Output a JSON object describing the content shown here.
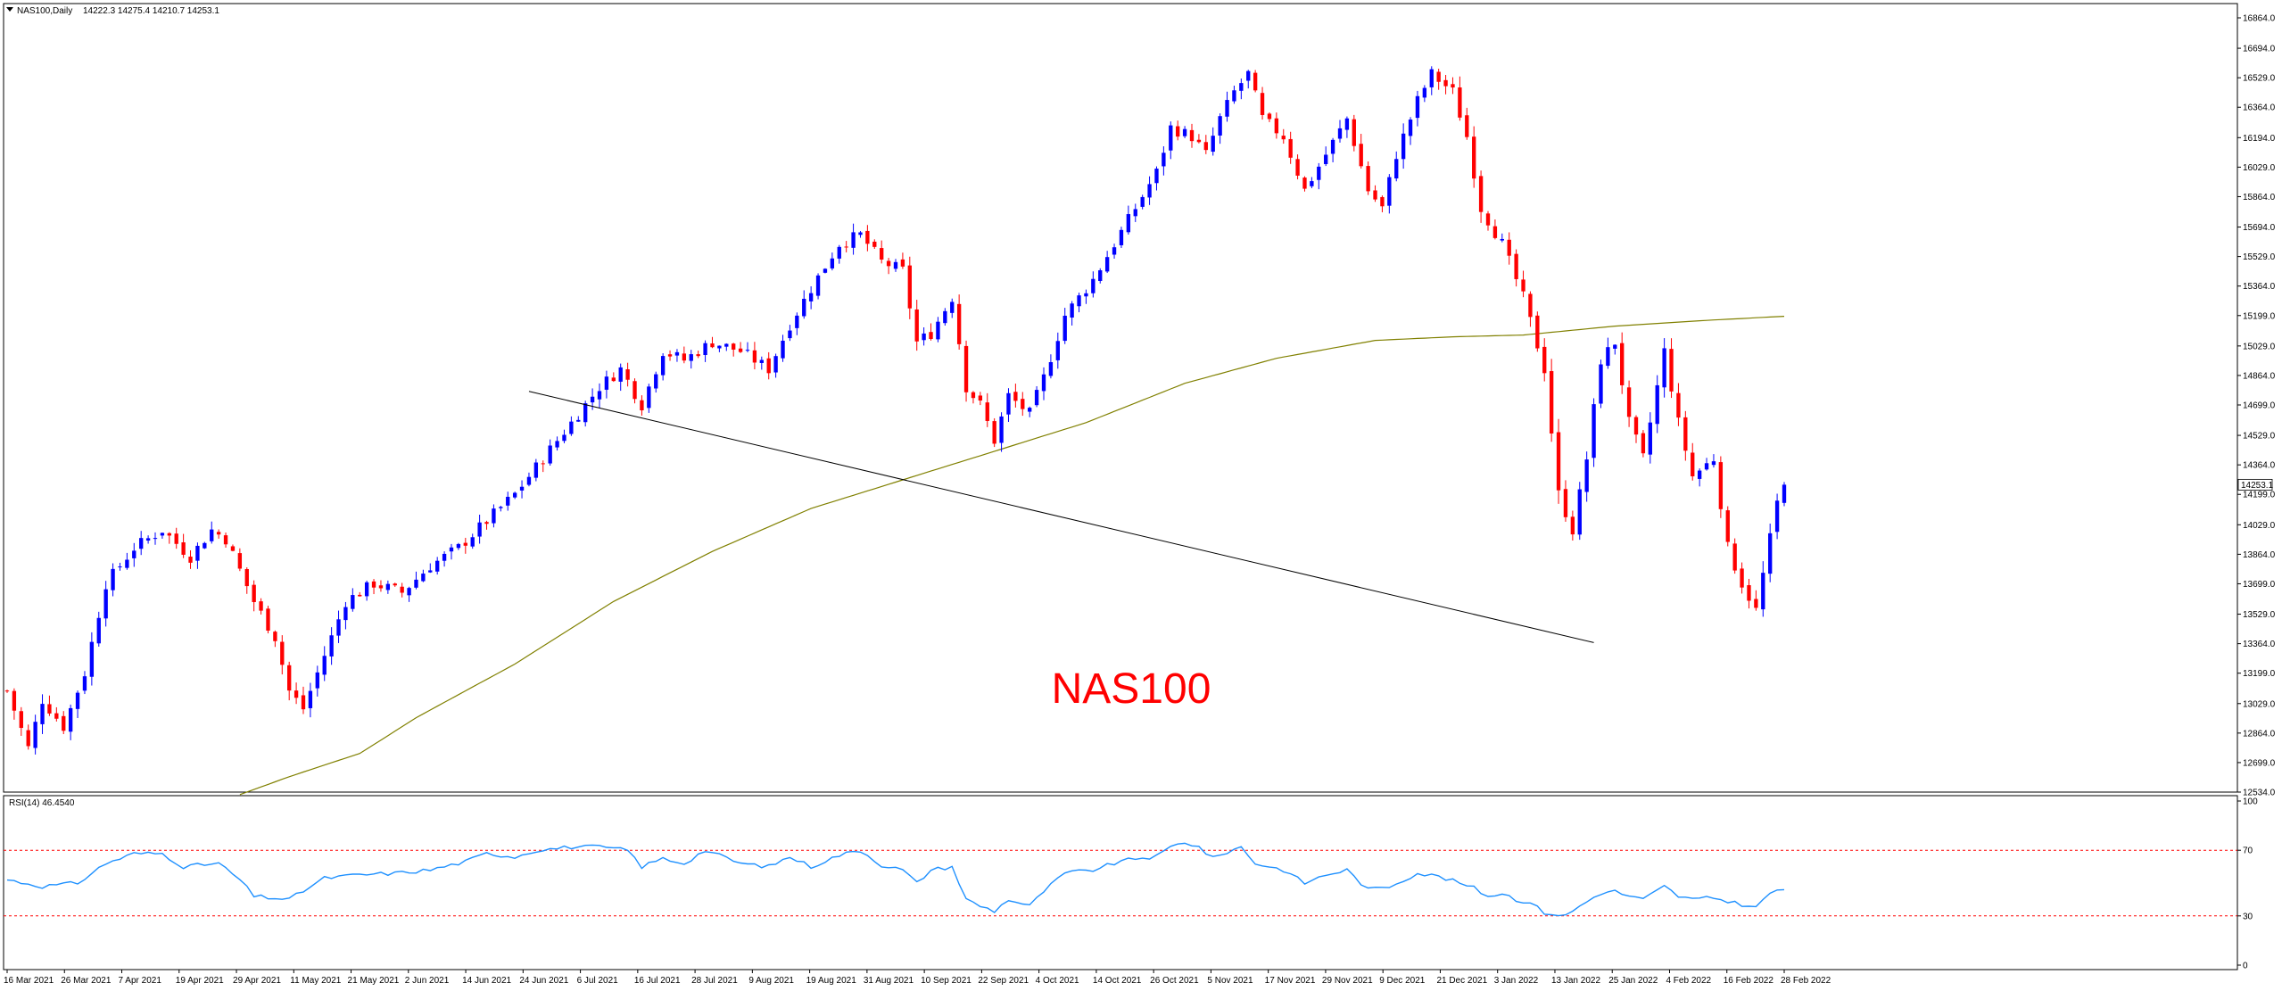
{
  "header": {
    "symbol_label": "NAS100,Daily",
    "ohlc_label": "14222.3 14275.4 14210.7 14253.1"
  },
  "rsi_header": {
    "label": "RSI(14) 46.4540"
  },
  "watermark_text": "NAS100",
  "current_price_label": "14253.1",
  "colors": {
    "bull": "#0000ff",
    "bear": "#ff0000",
    "ma": "#808000",
    "rsi": "#1e90ff",
    "rsi_levels": "#ff0000",
    "trendline": "#000000",
    "price_tag": "#ffffff"
  },
  "chart_data": [
    {
      "type": "candlestick",
      "title": "NAS100,Daily",
      "y_ticks": [
        "12534.0",
        "12699.0",
        "12864.0",
        "13029.0",
        "13199.0",
        "13364.0",
        "13529.0",
        "13699.0",
        "13864.0",
        "14029.0",
        "14199.0",
        "14364.0",
        "14529.0",
        "14699.0",
        "14864.0",
        "15029.0",
        "15199.0",
        "15364.0",
        "15529.0",
        "15694.0",
        "15864.0",
        "16029.0",
        "16194.0",
        "16364.0",
        "16529.0",
        "16694.0",
        "16864.0"
      ],
      "ylim": [
        12534,
        16864
      ],
      "x_labels": [
        "16 Mar 2021",
        "26 Mar 2021",
        "7 Apr 2021",
        "19 Apr 2021",
        "29 Apr 2021",
        "11 May 2021",
        "21 May 2021",
        "2 Jun 2021",
        "14 Jun 2021",
        "24 Jun 2021",
        "6 Jul 2021",
        "16 Jul 2021",
        "28 Jul 2021",
        "9 Aug 2021",
        "19 Aug 2021",
        "31 Aug 2021",
        "10 Sep 2021",
        "22 Sep 2021",
        "4 Oct 2021",
        "14 Oct 2021",
        "26 Oct 2021",
        "5 Nov 2021",
        "17 Nov 2021",
        "29 Nov 2021",
        "9 Dec 2021",
        "21 Dec 2021",
        "3 Jan 2022",
        "13 Jan 2022",
        "25 Jan 2022",
        "4 Feb 2022",
        "16 Feb 2022",
        "28 Feb 2022"
      ],
      "waypoints": [
        [
          0,
          13100
        ],
        [
          3,
          12780
        ],
        [
          5,
          13050
        ],
        [
          8,
          12900
        ],
        [
          11,
          13200
        ],
        [
          14,
          13700
        ],
        [
          18,
          13900
        ],
        [
          22,
          14000
        ],
        [
          26,
          13850
        ],
        [
          29,
          14000
        ],
        [
          31,
          13950
        ],
        [
          35,
          13600
        ],
        [
          38,
          13400
        ],
        [
          40,
          13100
        ],
        [
          42,
          13000
        ],
        [
          45,
          13300
        ],
        [
          48,
          13600
        ],
        [
          52,
          13700
        ],
        [
          56,
          13650
        ],
        [
          60,
          13800
        ],
        [
          64,
          13900
        ],
        [
          68,
          14050
        ],
        [
          72,
          14200
        ],
        [
          76,
          14400
        ],
        [
          80,
          14600
        ],
        [
          84,
          14800
        ],
        [
          87,
          14900
        ],
        [
          90,
          14700
        ],
        [
          93,
          15000
        ],
        [
          96,
          14950
        ],
        [
          100,
          15050
        ],
        [
          104,
          15000
        ],
        [
          108,
          14900
        ],
        [
          111,
          15150
        ],
        [
          114,
          15350
        ],
        [
          118,
          15600
        ],
        [
          121,
          15650
        ],
        [
          124,
          15500
        ],
        [
          127,
          15450
        ],
        [
          129,
          15050
        ],
        [
          131,
          15100
        ],
        [
          134,
          15300
        ],
        [
          136,
          14800
        ],
        [
          138,
          14700
        ],
        [
          140,
          14500
        ],
        [
          142,
          14750
        ],
        [
          145,
          14650
        ],
        [
          147,
          14850
        ],
        [
          150,
          15200
        ],
        [
          154,
          15400
        ],
        [
          157,
          15600
        ],
        [
          160,
          15800
        ],
        [
          163,
          16000
        ],
        [
          165,
          16250
        ],
        [
          168,
          16200
        ],
        [
          170,
          16100
        ],
        [
          172,
          16300
        ],
        [
          174,
          16450
        ],
        [
          176,
          16550
        ],
        [
          178,
          16300
        ],
        [
          181,
          16200
        ],
        [
          184,
          15900
        ],
        [
          187,
          16100
        ],
        [
          190,
          16300
        ],
        [
          193,
          15900
        ],
        [
          195,
          15800
        ],
        [
          197,
          16100
        ],
        [
          200,
          16400
        ],
        [
          202,
          16550
        ],
        [
          205,
          16450
        ],
        [
          207,
          16200
        ],
        [
          209,
          15800
        ],
        [
          212,
          15600
        ],
        [
          215,
          15300
        ],
        [
          218,
          14900
        ],
        [
          220,
          14200
        ],
        [
          222,
          14000
        ],
        [
          224,
          14400
        ],
        [
          226,
          14950
        ],
        [
          228,
          15050
        ],
        [
          230,
          14600
        ],
        [
          232,
          14400
        ],
        [
          235,
          15000
        ],
        [
          237,
          14600
        ],
        [
          239,
          14300
        ],
        [
          242,
          14400
        ],
        [
          244,
          13900
        ],
        [
          246,
          13700
        ],
        [
          248,
          13550
        ],
        [
          250,
          13950
        ],
        [
          251,
          14150
        ],
        [
          252,
          14253
        ]
      ],
      "bars": 252,
      "trendline": {
        "start": [
          74,
          14775
        ],
        "end": [
          225,
          13370
        ]
      },
      "current_price": 14253.1,
      "ma_waypoints": [
        [
          33,
          12520
        ],
        [
          40,
          12620
        ],
        [
          50,
          12750
        ],
        [
          58,
          12950
        ],
        [
          72,
          13250
        ],
        [
          86,
          13600
        ],
        [
          100,
          13880
        ],
        [
          114,
          14120
        ],
        [
          127,
          14280
        ],
        [
          140,
          14440
        ],
        [
          153,
          14600
        ],
        [
          167,
          14820
        ],
        [
          180,
          14960
        ],
        [
          194,
          15060
        ],
        [
          205,
          15080
        ],
        [
          215,
          15090
        ],
        [
          228,
          15140
        ],
        [
          240,
          15170
        ],
        [
          252,
          15195
        ]
      ]
    },
    {
      "type": "line",
      "title": "RSI(14) 46.4540",
      "ylim": [
        0,
        100
      ],
      "y_ticks": [
        "0",
        "30",
        "70",
        "100"
      ],
      "levels": [
        30,
        70
      ],
      "waypoints": [
        [
          0,
          52
        ],
        [
          5,
          48
        ],
        [
          10,
          50
        ],
        [
          14,
          62
        ],
        [
          18,
          68
        ],
        [
          22,
          68
        ],
        [
          25,
          60
        ],
        [
          30,
          62
        ],
        [
          33,
          52
        ],
        [
          35,
          42
        ],
        [
          40,
          40
        ],
        [
          45,
          53
        ],
        [
          50,
          55
        ],
        [
          55,
          56
        ],
        [
          60,
          58
        ],
        [
          65,
          63
        ],
        [
          68,
          68
        ],
        [
          72,
          66
        ],
        [
          75,
          70
        ],
        [
          80,
          72
        ],
        [
          84,
          72
        ],
        [
          88,
          70
        ],
        [
          90,
          60
        ],
        [
          93,
          65
        ],
        [
          96,
          62
        ],
        [
          99,
          70
        ],
        [
          104,
          62
        ],
        [
          108,
          60
        ],
        [
          111,
          66
        ],
        [
          114,
          60
        ],
        [
          118,
          67
        ],
        [
          121,
          70
        ],
        [
          124,
          61
        ],
        [
          127,
          58
        ],
        [
          129,
          50
        ],
        [
          131,
          58
        ],
        [
          134,
          60
        ],
        [
          136,
          40
        ],
        [
          138,
          36
        ],
        [
          140,
          33
        ],
        [
          142,
          40
        ],
        [
          145,
          36
        ],
        [
          147,
          45
        ],
        [
          150,
          56
        ],
        [
          154,
          58
        ],
        [
          157,
          62
        ],
        [
          160,
          65
        ],
        [
          163,
          66
        ],
        [
          165,
          72
        ],
        [
          167,
          75
        ],
        [
          169,
          72
        ],
        [
          171,
          65
        ],
        [
          173,
          69
        ],
        [
          175,
          72
        ],
        [
          177,
          62
        ],
        [
          181,
          58
        ],
        [
          184,
          50
        ],
        [
          187,
          55
        ],
        [
          190,
          58
        ],
        [
          193,
          46
        ],
        [
          196,
          48
        ],
        [
          200,
          56
        ],
        [
          203,
          54
        ],
        [
          206,
          50
        ],
        [
          208,
          47
        ],
        [
          210,
          42
        ],
        [
          212,
          44
        ],
        [
          214,
          40
        ],
        [
          216,
          38
        ],
        [
          218,
          32
        ],
        [
          221,
          30
        ],
        [
          223,
          36
        ],
        [
          226,
          44
        ],
        [
          228,
          45
        ],
        [
          230,
          42
        ],
        [
          232,
          40
        ],
        [
          235,
          48
        ],
        [
          237,
          42
        ],
        [
          239,
          40
        ],
        [
          242,
          41
        ],
        [
          244,
          39
        ],
        [
          246,
          37
        ],
        [
          248,
          35
        ],
        [
          250,
          44
        ],
        [
          251,
          46
        ],
        [
          252,
          46
        ]
      ]
    }
  ]
}
